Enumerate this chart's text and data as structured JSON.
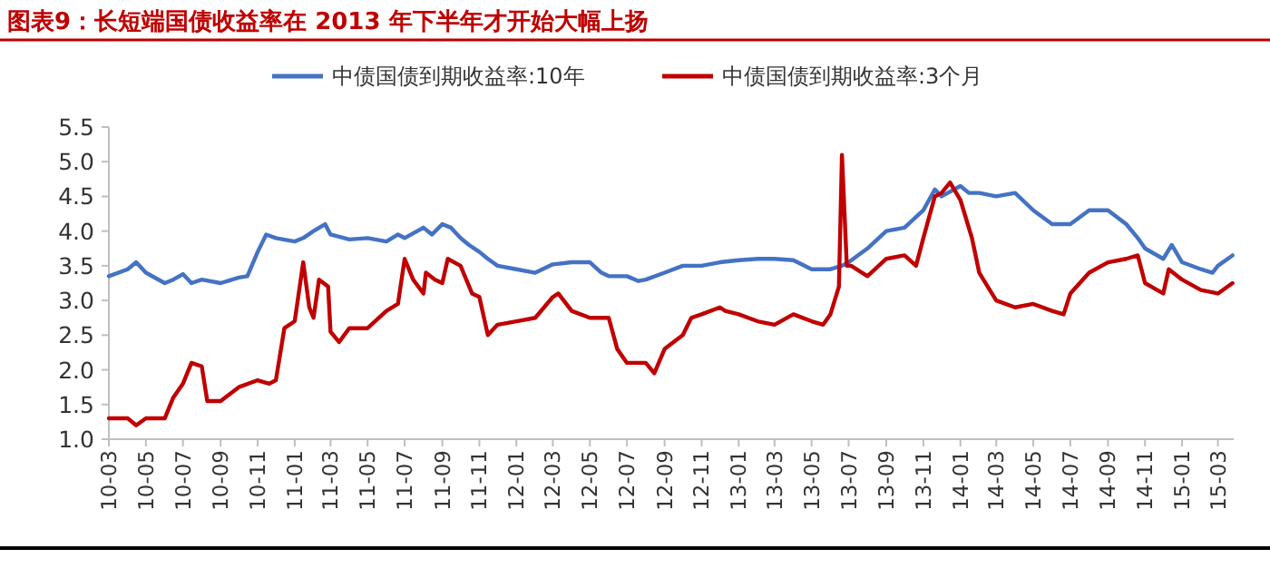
{
  "chart_data": {
    "type": "line",
    "title": "图表9：长短端国债收益率在 2013 年下半年才开始大幅上扬",
    "legend": "top",
    "grid": false,
    "marker": "none",
    "line_style": "solid",
    "xlim": [
      "2010-03-01",
      "2015-03-27"
    ],
    "xticks": [
      {
        "value": "2010-03",
        "label": "10-03"
      },
      {
        "value": "2010-05",
        "label": "10-05"
      },
      {
        "value": "2010-07",
        "label": "10-07"
      },
      {
        "value": "2010-09",
        "label": "10-09"
      },
      {
        "value": "2010-11",
        "label": "10-11"
      },
      {
        "value": "2011-01",
        "label": "11-01"
      },
      {
        "value": "2011-03",
        "label": "11-03"
      },
      {
        "value": "2011-05",
        "label": "11-05"
      },
      {
        "value": "2011-07",
        "label": "11-07"
      },
      {
        "value": "2011-09",
        "label": "11-09"
      },
      {
        "value": "2011-11",
        "label": "11-11"
      },
      {
        "value": "2012-01",
        "label": "12-01"
      },
      {
        "value": "2012-03",
        "label": "12-03"
      },
      {
        "value": "2012-05",
        "label": "12-05"
      },
      {
        "value": "2012-07",
        "label": "12-07"
      },
      {
        "value": "2012-09",
        "label": "12-09"
      },
      {
        "value": "2012-11",
        "label": "12-11"
      },
      {
        "value": "2013-01",
        "label": "13-01"
      },
      {
        "value": "2013-03",
        "label": "13-03"
      },
      {
        "value": "2013-05",
        "label": "13-05"
      },
      {
        "value": "2013-07",
        "label": "13-07"
      },
      {
        "value": "2013-09",
        "label": "13-09"
      },
      {
        "value": "2013-11",
        "label": "13-11"
      },
      {
        "value": "2014-01",
        "label": "14-01"
      },
      {
        "value": "2014-03",
        "label": "14-03"
      },
      {
        "value": "2014-05",
        "label": "14-05"
      },
      {
        "value": "2014-07",
        "label": "14-07"
      },
      {
        "value": "2014-09",
        "label": "14-09"
      },
      {
        "value": "2014-11",
        "label": "14-11"
      },
      {
        "value": "2015-01",
        "label": "15-01"
      },
      {
        "value": "2015-03",
        "label": "15-03"
      }
    ],
    "ylim": [
      1.0,
      5.5
    ],
    "yticks": [
      {
        "value": 1,
        "label": "1.0"
      },
      {
        "value": 1.5,
        "label": "1.5"
      },
      {
        "value": 2,
        "label": "2.0"
      },
      {
        "value": 2.5,
        "label": "2.5"
      },
      {
        "value": 3,
        "label": "3.0"
      },
      {
        "value": 3.5,
        "label": "3.5"
      },
      {
        "value": 4,
        "label": "4.0"
      },
      {
        "value": 4.5,
        "label": "4.5"
      },
      {
        "value": 5,
        "label": "5.0"
      },
      {
        "value": 5.5,
        "label": "5.5"
      }
    ],
    "series": [
      {
        "name": "中债国债到期收益率:10年",
        "color": "#4472c4",
        "x": [
          "2010-03-01",
          "2010-04-01",
          "2010-04-15",
          "2010-05-01",
          "2010-06-01",
          "2010-06-15",
          "2010-07-01",
          "2010-07-15",
          "2010-08-01",
          "2010-09-01",
          "2010-10-01",
          "2010-10-15",
          "2010-11-01",
          "2010-11-15",
          "2010-12-01",
          "2011-01-01",
          "2011-01-15",
          "2011-02-01",
          "2011-02-20",
          "2011-03-01",
          "2011-04-01",
          "2011-05-01",
          "2011-06-01",
          "2011-06-20",
          "2011-07-01",
          "2011-08-01",
          "2011-08-15",
          "2011-09-01",
          "2011-09-15",
          "2011-10-01",
          "2011-10-15",
          "2011-11-01",
          "2011-11-15",
          "2011-12-01",
          "2012-01-01",
          "2012-02-01",
          "2012-03-01",
          "2012-04-01",
          "2012-05-01",
          "2012-05-20",
          "2012-06-01",
          "2012-07-01",
          "2012-07-20",
          "2012-08-01",
          "2012-09-01",
          "2012-10-01",
          "2012-11-01",
          "2012-12-01",
          "2013-01-01",
          "2013-02-01",
          "2013-03-01",
          "2013-04-01",
          "2013-05-01",
          "2013-06-01",
          "2013-06-20",
          "2013-07-01",
          "2013-08-01",
          "2013-09-01",
          "2013-10-01",
          "2013-11-01",
          "2013-11-20",
          "2013-12-01",
          "2014-01-01",
          "2014-01-15",
          "2014-02-01",
          "2014-03-01",
          "2014-04-01",
          "2014-05-01",
          "2014-06-01",
          "2014-07-01",
          "2014-08-01",
          "2014-09-01",
          "2014-10-01",
          "2014-10-20",
          "2014-11-01",
          "2014-12-01",
          "2014-12-15",
          "2015-01-01",
          "2015-02-01",
          "2015-02-20",
          "2015-03-01",
          "2015-03-25"
        ],
        "values": [
          3.35,
          3.45,
          3.55,
          3.4,
          3.25,
          3.3,
          3.38,
          3.25,
          3.3,
          3.25,
          3.33,
          3.35,
          3.7,
          3.95,
          3.9,
          3.85,
          3.9,
          4.0,
          4.1,
          3.95,
          3.88,
          3.9,
          3.85,
          3.95,
          3.9,
          4.05,
          3.95,
          4.1,
          4.05,
          3.9,
          3.8,
          3.7,
          3.6,
          3.5,
          3.45,
          3.4,
          3.52,
          3.55,
          3.55,
          3.4,
          3.35,
          3.35,
          3.28,
          3.3,
          3.4,
          3.5,
          3.5,
          3.55,
          3.58,
          3.6,
          3.6,
          3.58,
          3.45,
          3.45,
          3.5,
          3.55,
          3.75,
          4.0,
          4.05,
          4.3,
          4.6,
          4.5,
          4.65,
          4.55,
          4.55,
          4.5,
          4.55,
          4.3,
          4.1,
          4.1,
          4.3,
          4.3,
          4.1,
          3.9,
          3.75,
          3.6,
          3.8,
          3.55,
          3.45,
          3.4,
          3.5,
          3.65
        ]
      },
      {
        "name": "中债国债到期收益率:3个月",
        "color": "#c00000",
        "x": [
          "2010-03-01",
          "2010-04-01",
          "2010-04-15",
          "2010-05-01",
          "2010-06-01",
          "2010-06-15",
          "2010-07-01",
          "2010-07-15",
          "2010-08-01",
          "2010-08-10",
          "2010-09-01",
          "2010-10-01",
          "2010-11-01",
          "2010-11-20",
          "2010-12-01",
          "2010-12-15",
          "2011-01-01",
          "2011-01-15",
          "2011-01-25",
          "2011-02-01",
          "2011-02-10",
          "2011-02-25",
          "2011-03-01",
          "2011-03-15",
          "2011-04-01",
          "2011-05-01",
          "2011-06-01",
          "2011-06-20",
          "2011-07-01",
          "2011-07-15",
          "2011-08-01",
          "2011-08-05",
          "2011-08-20",
          "2011-09-01",
          "2011-09-10",
          "2011-10-01",
          "2011-10-20",
          "2011-11-01",
          "2011-11-15",
          "2011-12-01",
          "2012-01-01",
          "2012-02-01",
          "2012-03-01",
          "2012-03-10",
          "2012-04-01",
          "2012-05-01",
          "2012-06-01",
          "2012-06-15",
          "2012-07-01",
          "2012-08-01",
          "2012-08-15",
          "2012-09-01",
          "2012-10-01",
          "2012-10-15",
          "2012-11-01",
          "2012-12-01",
          "2012-12-10",
          "2013-01-01",
          "2013-02-01",
          "2013-03-01",
          "2013-04-01",
          "2013-05-01",
          "2013-05-20",
          "2013-06-01",
          "2013-06-15",
          "2013-06-20",
          "2013-06-28",
          "2013-07-05",
          "2013-08-01",
          "2013-09-01",
          "2013-10-01",
          "2013-10-20",
          "2013-11-01",
          "2013-11-20",
          "2013-12-01",
          "2013-12-15",
          "2014-01-01",
          "2014-01-20",
          "2014-02-01",
          "2014-03-01",
          "2014-04-01",
          "2014-05-01",
          "2014-06-01",
          "2014-06-20",
          "2014-07-01",
          "2014-08-01",
          "2014-09-01",
          "2014-10-01",
          "2014-10-20",
          "2014-11-01",
          "2014-12-01",
          "2014-12-10",
          "2015-01-01",
          "2015-02-01",
          "2015-03-01",
          "2015-03-25"
        ],
        "values": [
          1.3,
          1.3,
          1.2,
          1.3,
          1.3,
          1.6,
          1.8,
          2.1,
          2.05,
          1.55,
          1.55,
          1.75,
          1.85,
          1.8,
          1.85,
          2.6,
          2.7,
          3.55,
          2.9,
          2.75,
          3.3,
          3.2,
          2.55,
          2.4,
          2.6,
          2.6,
          2.85,
          2.95,
          3.6,
          3.3,
          3.1,
          3.4,
          3.3,
          3.25,
          3.6,
          3.5,
          3.1,
          3.05,
          2.5,
          2.65,
          2.7,
          2.75,
          3.05,
          3.1,
          2.85,
          2.75,
          2.75,
          2.3,
          2.1,
          2.1,
          1.95,
          2.3,
          2.5,
          2.75,
          2.8,
          2.9,
          2.85,
          2.8,
          2.7,
          2.65,
          2.8,
          2.7,
          2.65,
          2.8,
          3.2,
          5.1,
          3.5,
          3.5,
          3.35,
          3.6,
          3.65,
          3.5,
          3.9,
          4.5,
          4.55,
          4.7,
          4.45,
          3.9,
          3.4,
          3.0,
          2.9,
          2.95,
          2.85,
          2.8,
          3.1,
          3.4,
          3.55,
          3.6,
          3.65,
          3.25,
          3.1,
          3.45,
          3.3,
          3.15,
          3.1,
          3.25
        ]
      }
    ]
  }
}
